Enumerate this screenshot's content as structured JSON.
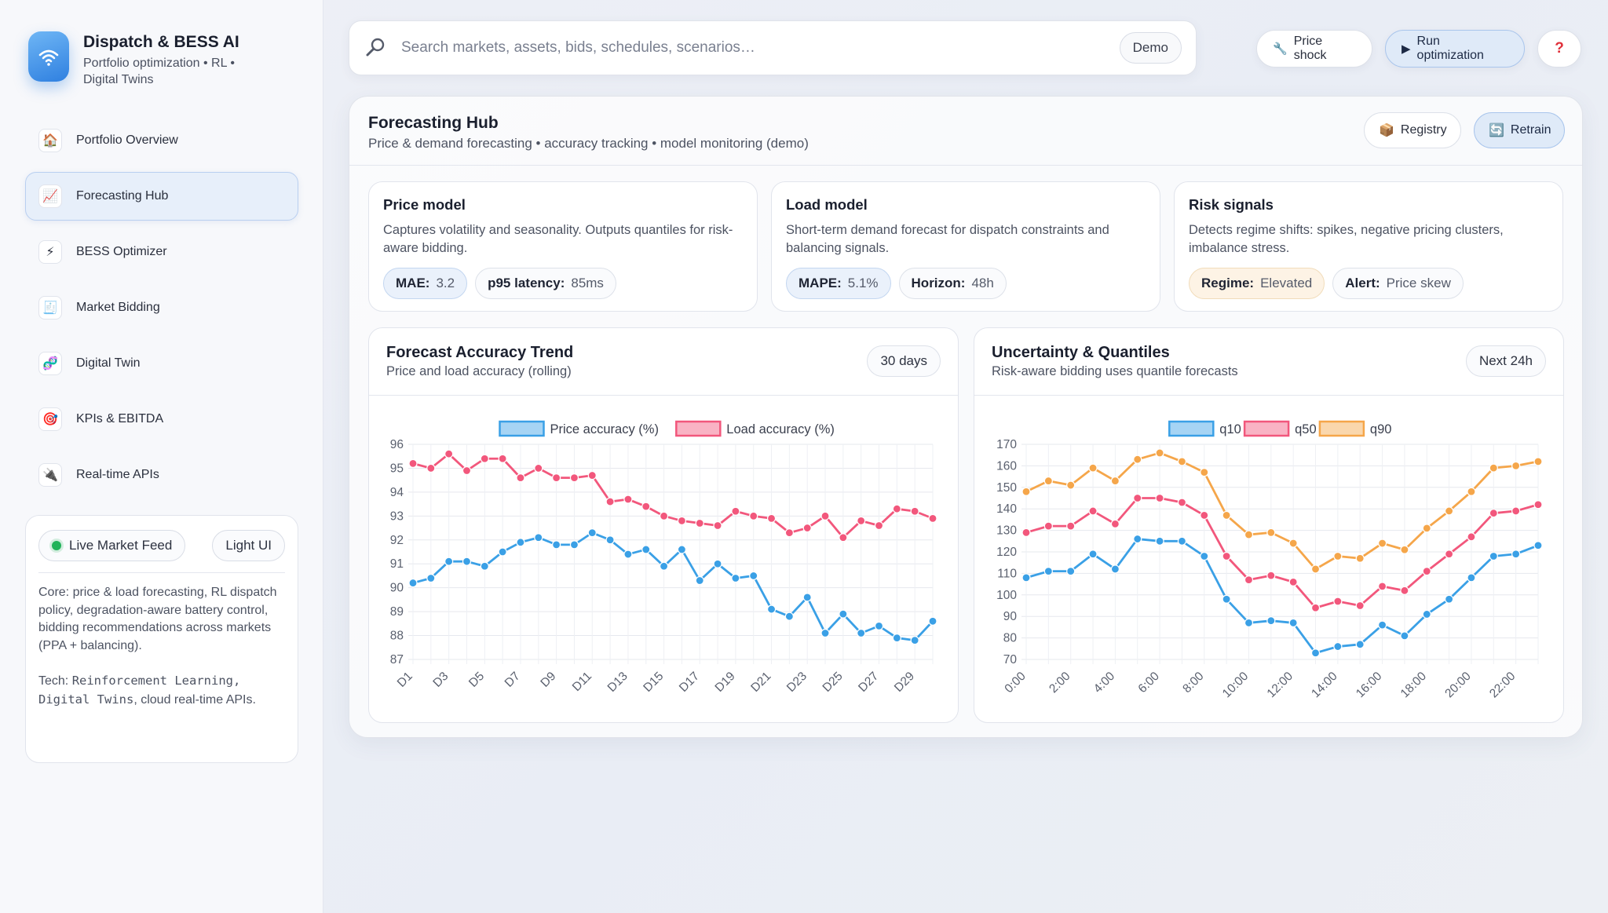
{
  "brand": {
    "title": "Dispatch & BESS AI",
    "subtitle": "Portfolio optimization • RL • Digital Twins"
  },
  "nav": [
    {
      "label": "Portfolio Overview",
      "icon": "🏠",
      "active": false
    },
    {
      "label": "Forecasting Hub",
      "icon": "📈",
      "active": true
    },
    {
      "label": "BESS Optimizer",
      "icon": "⚡",
      "active": false
    },
    {
      "label": "Market Bidding",
      "icon": "🧾",
      "active": false
    },
    {
      "label": "Digital Twin",
      "icon": "🧬",
      "active": false
    },
    {
      "label": "KPIs & EBITDA",
      "icon": "🎯",
      "active": false
    },
    {
      "label": "Real-time APIs",
      "icon": "🔌",
      "active": false
    }
  ],
  "side_card": {
    "live_label": "Live Market Feed",
    "theme_label": "Light UI",
    "description": "Core: price & load forecasting, RL dispatch policy, degradation-aware battery control, bidding recommendations across markets (PPA + balancing).",
    "tech_prefix": "Tech: ",
    "tech_mono": "Reinforcement Learning, Digital Twins",
    "tech_suffix": ", cloud real-time APIs."
  },
  "search": {
    "placeholder": "Search markets, assets, bids, schedules, scenarios…",
    "badge": "Demo"
  },
  "top_actions": {
    "price_shock": "Price shock",
    "run_optimization": "Run optimization",
    "help": "?"
  },
  "page": {
    "title": "Forecasting Hub",
    "subtitle": "Price & demand forecasting • accuracy tracking • model monitoring (demo)",
    "registry": "Registry",
    "retrain": "Retrain"
  },
  "models": [
    {
      "title": "Price model",
      "desc": "Captures volatility and seasonality. Outputs quantiles for risk-aware bidding.",
      "stats": [
        {
          "label": "MAE:",
          "value": "3.2",
          "style": "blue"
        },
        {
          "label": "p95 latency:",
          "value": "85ms",
          "style": ""
        }
      ]
    },
    {
      "title": "Load model",
      "desc": "Short-term demand forecast for dispatch constraints and balancing signals.",
      "stats": [
        {
          "label": "MAPE:",
          "value": "5.1%",
          "style": "blue"
        },
        {
          "label": "Horizon:",
          "value": "48h",
          "style": ""
        }
      ]
    },
    {
      "title": "Risk signals",
      "desc": "Detects regime shifts: spikes, negative pricing clusters, imbalance stress.",
      "stats": [
        {
          "label": "Regime:",
          "value": "Elevated",
          "style": "amber"
        },
        {
          "label": "Alert:",
          "value": "Price skew",
          "style": ""
        }
      ]
    }
  ],
  "accuracy_card": {
    "title": "Forecast Accuracy Trend",
    "subtitle": "Price and load accuracy (rolling)",
    "badge": "30 days"
  },
  "quantile_card": {
    "title": "Uncertainty & Quantiles",
    "subtitle": "Risk-aware bidding uses quantile forecasts",
    "badge": "Next 24h"
  },
  "colors": {
    "blue": "#3aa0e6",
    "pink": "#f2577c",
    "orange": "#f5a64a",
    "accent": "#2f80e0"
  },
  "chart_data": [
    {
      "type": "line",
      "title": "Forecast Accuracy Trend",
      "xlabel": "",
      "ylabel": "",
      "ylim": [
        87,
        96
      ],
      "yticks": [
        87,
        88,
        89,
        90,
        91,
        92,
        93,
        94,
        95,
        96
      ],
      "categories": [
        "D1",
        "D2",
        "D3",
        "D4",
        "D5",
        "D6",
        "D7",
        "D8",
        "D9",
        "D10",
        "D11",
        "D12",
        "D13",
        "D14",
        "D15",
        "D16",
        "D17",
        "D18",
        "D19",
        "D20",
        "D21",
        "D22",
        "D23",
        "D24",
        "D25",
        "D26",
        "D27",
        "D28",
        "D29",
        "D30"
      ],
      "tick_labels": [
        "D1",
        "D3",
        "D5",
        "D7",
        "D9",
        "D11",
        "D13",
        "D15",
        "D17",
        "D19",
        "D21",
        "D23",
        "D25",
        "D27",
        "D29"
      ],
      "series": [
        {
          "name": "Price accuracy (%)",
          "color": "#3aa0e6",
          "values": [
            90.2,
            90.4,
            91.1,
            91.1,
            90.9,
            91.5,
            91.9,
            92.1,
            91.8,
            91.8,
            92.3,
            92.0,
            91.4,
            91.6,
            90.9,
            91.6,
            90.3,
            91.0,
            90.4,
            90.5,
            89.1,
            88.8,
            89.6,
            88.1,
            88.9,
            88.1,
            88.4,
            87.9,
            87.8,
            88.6
          ]
        },
        {
          "name": "Load accuracy (%)",
          "color": "#f2577c",
          "values": [
            95.2,
            95.0,
            95.6,
            94.9,
            95.4,
            95.4,
            94.6,
            95.0,
            94.6,
            94.6,
            94.7,
            93.6,
            93.7,
            93.4,
            93.0,
            92.8,
            92.7,
            92.6,
            93.2,
            93.0,
            92.9,
            92.3,
            92.5,
            93.0,
            92.1,
            92.8,
            92.6,
            93.3,
            93.2,
            92.9
          ]
        }
      ],
      "legend": "top-center"
    },
    {
      "type": "line",
      "title": "Uncertainty & Quantiles",
      "xlabel": "",
      "ylabel": "",
      "ylim": [
        70,
        170
      ],
      "yticks": [
        70,
        80,
        90,
        100,
        110,
        120,
        130,
        140,
        150,
        160,
        170
      ],
      "categories": [
        "0:00",
        "1:00",
        "2:00",
        "3:00",
        "4:00",
        "5:00",
        "6:00",
        "7:00",
        "8:00",
        "9:00",
        "10:00",
        "11:00",
        "12:00",
        "13:00",
        "14:00",
        "15:00",
        "16:00",
        "17:00",
        "18:00",
        "19:00",
        "20:00",
        "21:00",
        "22:00",
        "23:00"
      ],
      "tick_labels": [
        "0:00",
        "2:00",
        "4:00",
        "6:00",
        "8:00",
        "10:00",
        "12:00",
        "14:00",
        "16:00",
        "18:00",
        "20:00",
        "22:00"
      ],
      "series": [
        {
          "name": "q10",
          "color": "#3aa0e6",
          "values": [
            108,
            111,
            111,
            119,
            112,
            126,
            125,
            125,
            118,
            98,
            87,
            88,
            87,
            73,
            76,
            77,
            86,
            81,
            91,
            98,
            108,
            118,
            119,
            123
          ]
        },
        {
          "name": "q50",
          "color": "#f2577c",
          "values": [
            129,
            132,
            132,
            139,
            133,
            145,
            145,
            143,
            137,
            118,
            107,
            109,
            106,
            94,
            97,
            95,
            104,
            102,
            111,
            119,
            127,
            138,
            139,
            142
          ]
        },
        {
          "name": "q90",
          "color": "#f5a64a",
          "values": [
            148,
            153,
            151,
            159,
            153,
            163,
            166,
            162,
            157,
            137,
            128,
            129,
            124,
            112,
            118,
            117,
            124,
            121,
            131,
            139,
            148,
            159,
            160,
            162
          ]
        }
      ],
      "legend": "top-center"
    }
  ]
}
